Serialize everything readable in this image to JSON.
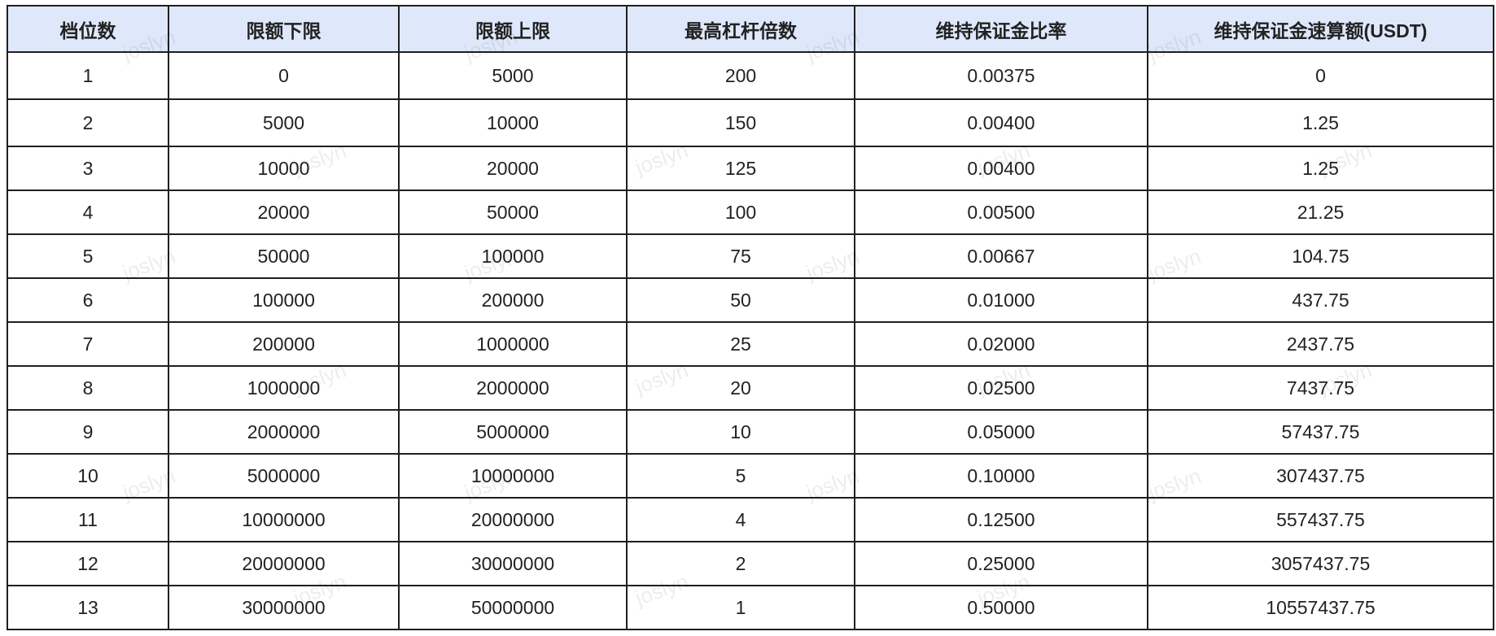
{
  "table": {
    "headers": [
      "档位数",
      "限额下限",
      "限额上限",
      "最高杠杆倍数",
      "维持保证金比率",
      "维持保证金速算额(USDT)"
    ],
    "rows": [
      [
        "1",
        "0",
        "5000",
        "200",
        "0.00375",
        "0"
      ],
      [
        "2",
        "5000",
        "10000",
        "150",
        "0.00400",
        "1.25"
      ],
      [
        "3",
        "10000",
        "20000",
        "125",
        "0.00400",
        "1.25"
      ],
      [
        "4",
        "20000",
        "50000",
        "100",
        "0.00500",
        "21.25"
      ],
      [
        "5",
        "50000",
        "100000",
        "75",
        "0.00667",
        "104.75"
      ],
      [
        "6",
        "100000",
        "200000",
        "50",
        "0.01000",
        "437.75"
      ],
      [
        "7",
        "200000",
        "1000000",
        "25",
        "0.02000",
        "2437.75"
      ],
      [
        "8",
        "1000000",
        "2000000",
        "20",
        "0.02500",
        "7437.75"
      ],
      [
        "9",
        "2000000",
        "5000000",
        "10",
        "0.05000",
        "57437.75"
      ],
      [
        "10",
        "5000000",
        "10000000",
        "5",
        "0.10000",
        "307437.75"
      ],
      [
        "11",
        "10000000",
        "20000000",
        "4",
        "0.12500",
        "557437.75"
      ],
      [
        "12",
        "20000000",
        "30000000",
        "2",
        "0.25000",
        "3057437.75"
      ],
      [
        "13",
        "30000000",
        "50000000",
        "1",
        "0.50000",
        "10557437.75"
      ]
    ]
  },
  "watermark": "joslyn",
  "colors": {
    "header_bg": "#dfe8fa",
    "border": "#1f1f1f"
  }
}
